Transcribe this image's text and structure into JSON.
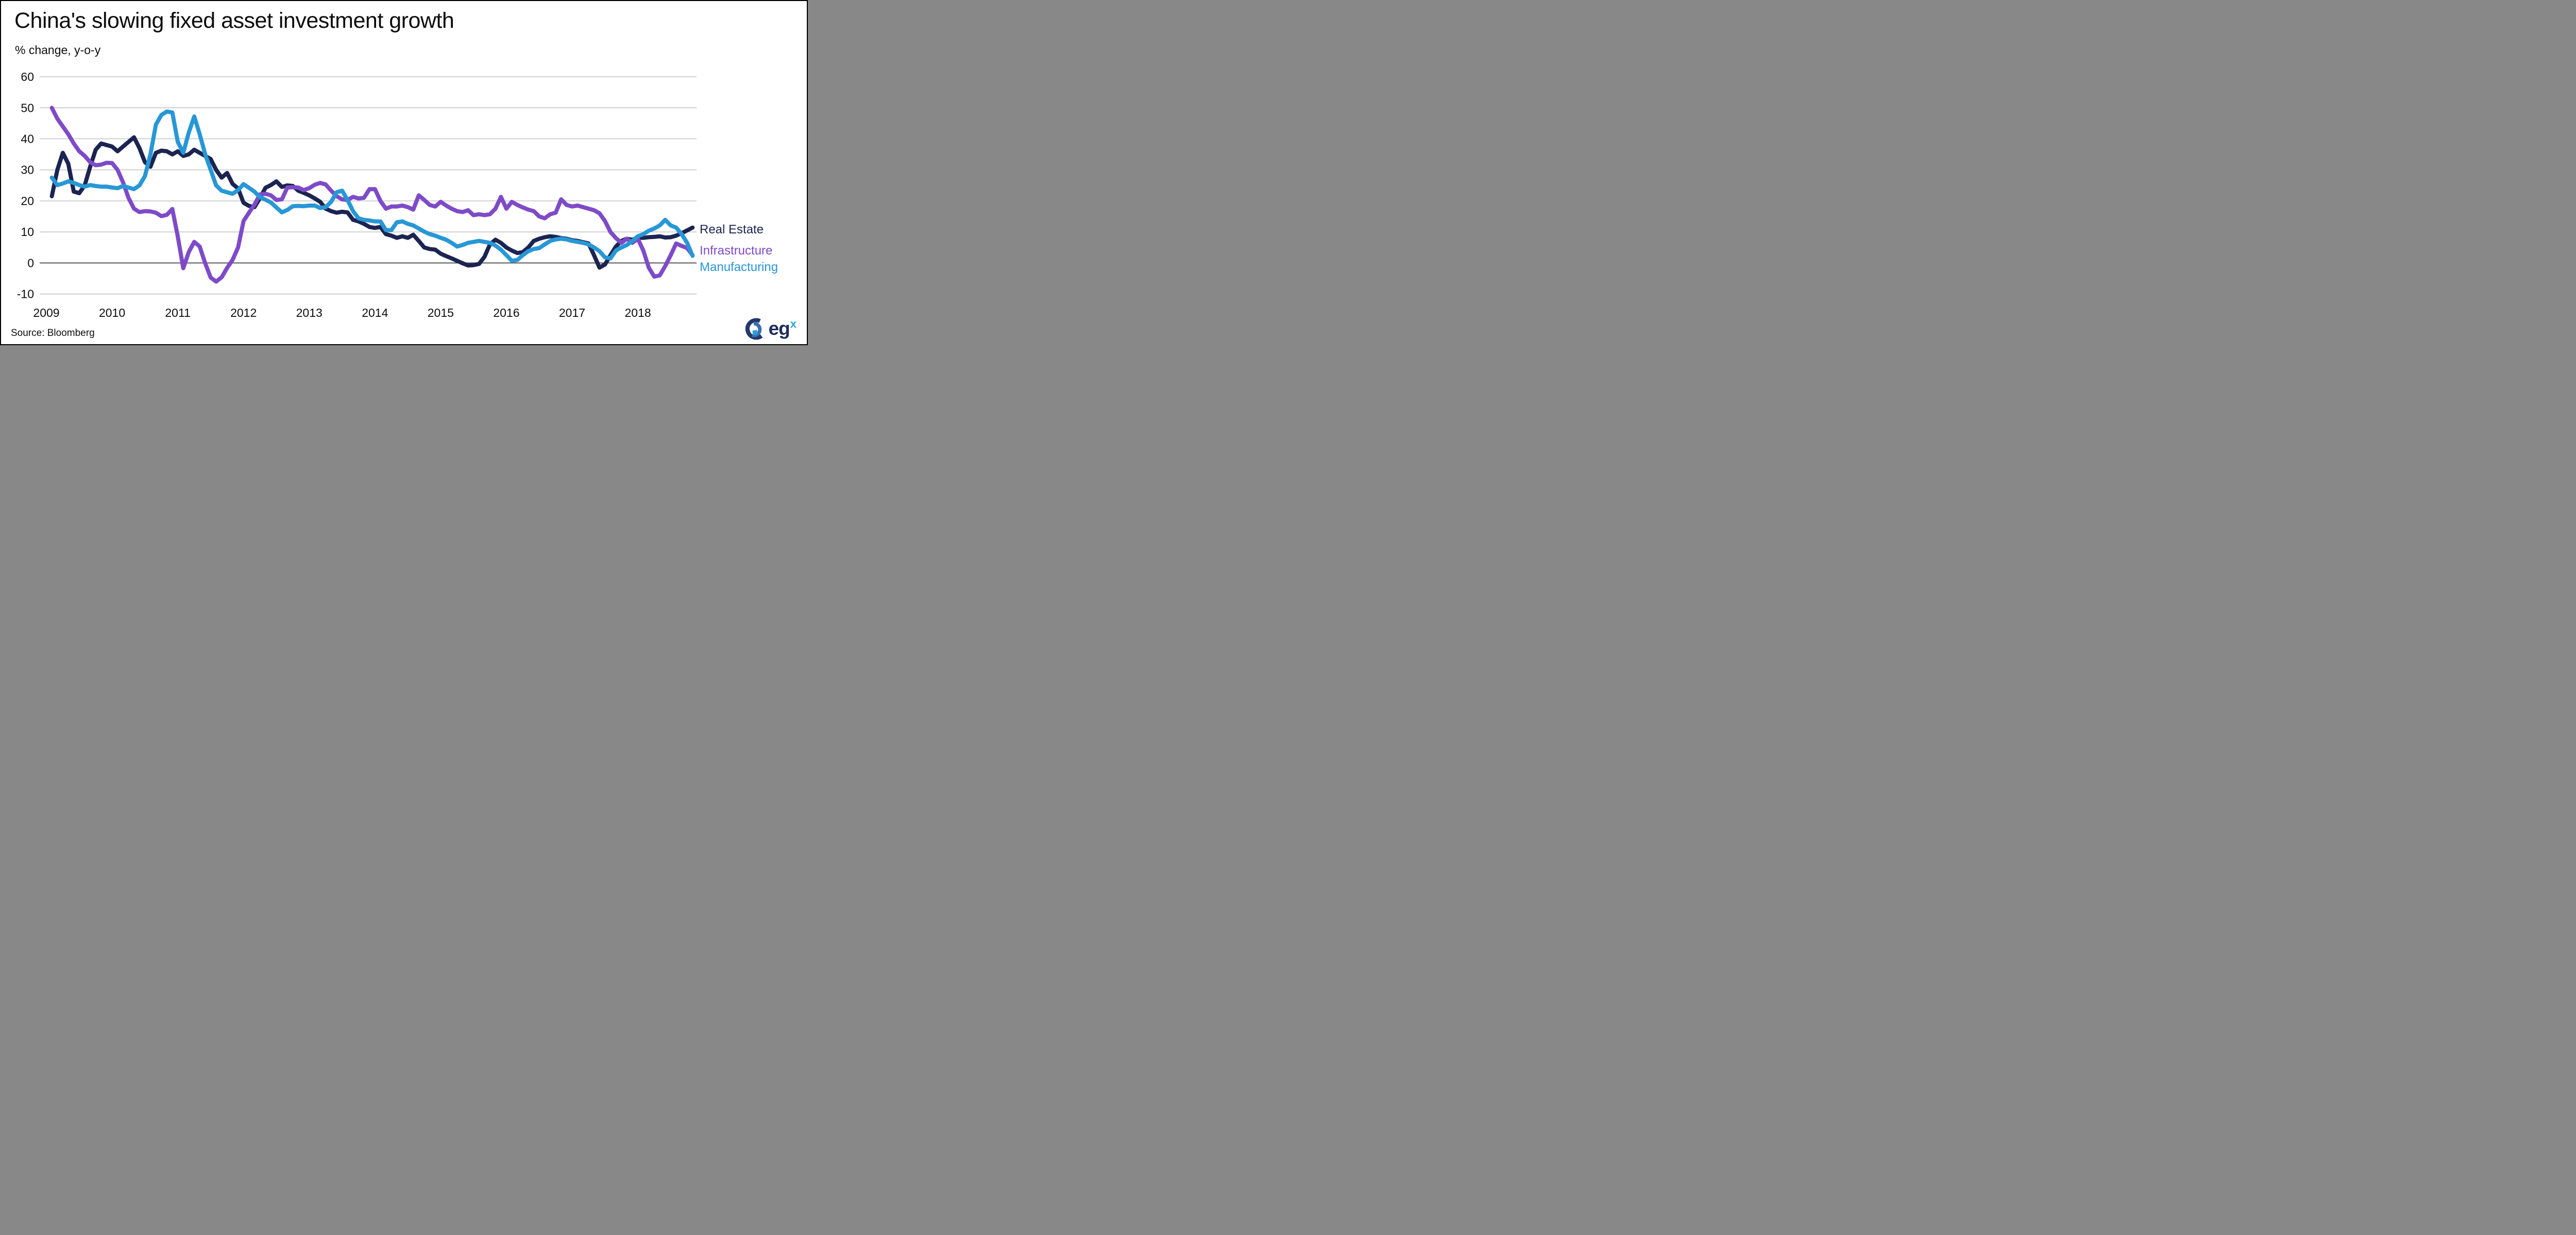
{
  "title": "China's slowing fixed asset investment growth",
  "subtitle": "% change, y-o-y",
  "source": "Source: Bloomberg",
  "logo": {
    "text": "eg",
    "sup": "x"
  },
  "colors": {
    "real_estate": "#1b2451",
    "infrastructure": "#7e4bc8",
    "manufacturing": "#2897d6",
    "grid": "#bfbfbf",
    "zero_line": "#595959",
    "axis_text": "#0d0d0d"
  },
  "legend": [
    {
      "label": "Real Estate",
      "color_key": "real_estate"
    },
    {
      "label": "Infrastructure",
      "color_key": "infrastructure"
    },
    {
      "label": "Manufacturing",
      "color_key": "manufacturing"
    }
  ],
  "chart_data": {
    "type": "line",
    "title": "China's slowing fixed asset investment growth",
    "ylabel": "% change, y-o-y",
    "ylim": [
      -10,
      60
    ],
    "y_ticks": [
      60,
      50,
      40,
      30,
      20,
      10,
      0,
      -10
    ],
    "x_ticks": [
      "2009",
      "2010",
      "2011",
      "2012",
      "2013",
      "2014",
      "2015",
      "2016",
      "2017",
      "2018"
    ],
    "grid": "horizontal-only",
    "legend_position": "right-of-line-ends",
    "x_start_year": 2009,
    "x_start_month_index": 1,
    "x_note": "monthly data Feb 2009 - Nov 2018",
    "series": [
      {
        "name": "Real Estate",
        "color_key": "real_estate",
        "values": [
          21.5,
          30.0,
          35.5,
          32.0,
          23.0,
          22.5,
          25.0,
          31.0,
          36.5,
          38.5,
          38.0,
          37.5,
          36.0,
          37.5,
          39.0,
          40.5,
          37.0,
          32.5,
          31.0,
          35.5,
          36.2,
          36.0,
          35.0,
          36.0,
          34.5,
          35.0,
          36.5,
          35.5,
          34.5,
          33.5,
          30.0,
          27.5,
          29.0,
          25.5,
          24.0,
          19.4,
          18.4,
          18.0,
          20.9,
          24.2,
          25.1,
          26.3,
          24.5,
          25.0,
          24.8,
          23.3,
          22.6,
          21.8,
          20.8,
          19.7,
          17.5,
          16.7,
          16.2,
          16.5,
          16.3,
          13.9,
          13.4,
          12.6,
          11.6,
          11.3,
          11.6,
          9.3,
          8.8,
          8.1,
          8.6,
          8.1,
          9.1,
          7.1,
          5.0,
          4.5,
          4.3,
          3.0,
          2.2,
          1.5,
          0.7,
          -0.1,
          -0.8,
          -0.7,
          -0.3,
          2.0,
          6.0,
          7.5,
          6.5,
          5.0,
          4.0,
          3.2,
          3.5,
          5.0,
          7.1,
          7.8,
          8.3,
          8.6,
          8.4,
          8.0,
          7.8,
          7.3,
          7.1,
          6.7,
          6.3,
          2.5,
          -1.5,
          -0.5,
          2.5,
          5.3,
          7.1,
          7.8,
          7.5,
          8.1,
          8.1,
          8.3,
          8.4,
          8.6,
          8.2,
          8.3,
          8.8,
          9.6,
          10.5,
          11.4
        ]
      },
      {
        "name": "Infrastructure",
        "color_key": "infrastructure",
        "values": [
          50.0,
          46.5,
          44.0,
          41.5,
          38.5,
          36.0,
          34.5,
          32.5,
          31.5,
          31.7,
          32.3,
          32.2,
          30.0,
          26.0,
          21.0,
          17.5,
          16.4,
          16.7,
          16.6,
          16.2,
          15.1,
          15.5,
          17.4,
          8.5,
          -1.7,
          3.5,
          6.8,
          5.3,
          -0.1,
          -4.7,
          -6.0,
          -4.6,
          -1.6,
          1.0,
          5.0,
          13.5,
          16.2,
          18.8,
          22.1,
          22.3,
          21.8,
          20.3,
          20.5,
          24.3,
          24.4,
          24.3,
          23.5,
          24.1,
          25.2,
          25.8,
          25.3,
          23.3,
          21.5,
          20.5,
          20.3,
          21.3,
          20.8,
          21.0,
          23.8,
          23.8,
          20.0,
          17.5,
          18.2,
          18.2,
          18.5,
          18.0,
          17.2,
          21.8,
          20.3,
          18.7,
          18.2,
          19.7,
          18.5,
          17.5,
          16.7,
          16.4,
          17.0,
          15.4,
          15.7,
          15.4,
          15.7,
          17.5,
          21.3,
          17.5,
          19.7,
          18.7,
          17.9,
          17.2,
          16.7,
          15.0,
          14.4,
          15.7,
          16.2,
          20.5,
          18.7,
          18.2,
          18.5,
          18.0,
          17.5,
          17.0,
          16.0,
          13.5,
          10.0,
          8.0,
          6.5,
          7.8,
          6.5,
          7.8,
          4.0,
          -1.5,
          -4.4,
          -4.0,
          -1.0,
          2.5,
          6.3,
          5.5,
          4.8,
          2.5
        ]
      },
      {
        "name": "Manufacturing",
        "color_key": "manufacturing",
        "values": [
          27.5,
          25.1,
          25.6,
          26.3,
          25.8,
          25.1,
          24.6,
          25.1,
          24.8,
          24.6,
          24.6,
          24.3,
          24.1,
          24.8,
          24.3,
          23.8,
          25.0,
          28.0,
          35.0,
          44.6,
          47.7,
          48.8,
          48.5,
          39.0,
          35.5,
          42.0,
          47.2,
          41.5,
          35.0,
          30.0,
          25.0,
          23.3,
          22.8,
          22.3,
          23.5,
          25.4,
          24.2,
          23.0,
          21.2,
          20.4,
          19.5,
          17.9,
          16.3,
          17.1,
          18.3,
          18.4,
          18.3,
          18.5,
          18.5,
          17.7,
          18.0,
          19.7,
          22.8,
          23.3,
          20.3,
          16.7,
          14.4,
          13.9,
          13.7,
          13.4,
          13.4,
          10.6,
          10.6,
          13.1,
          13.4,
          12.6,
          12.1,
          11.1,
          10.1,
          9.3,
          8.8,
          8.1,
          7.5,
          6.5,
          5.3,
          5.8,
          6.5,
          6.8,
          7.1,
          6.8,
          6.5,
          5.6,
          4.3,
          2.5,
          0.7,
          1.0,
          2.5,
          3.8,
          4.5,
          4.8,
          6.0,
          7.1,
          7.6,
          7.8,
          7.6,
          7.1,
          6.8,
          6.5,
          6.0,
          5.0,
          3.8,
          1.8,
          1.5,
          4.0,
          5.0,
          5.8,
          7.1,
          8.6,
          9.3,
          10.4,
          11.1,
          12.1,
          13.9,
          12.1,
          11.4,
          9.3,
          6.5,
          2.3
        ]
      }
    ]
  }
}
